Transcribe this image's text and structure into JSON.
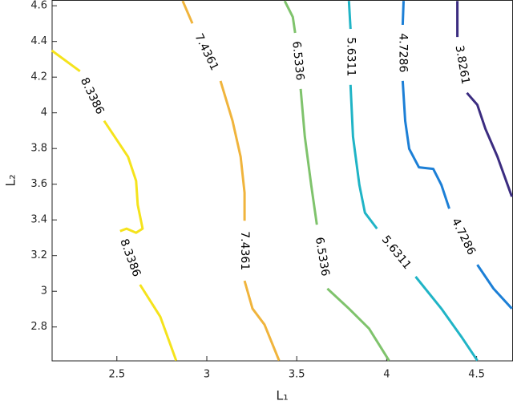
{
  "chart_data": {
    "type": "contour",
    "xlabel": "L₁",
    "ylabel": "L₂",
    "xlim": [
      2.14,
      4.7
    ],
    "ylim": [
      2.61,
      4.63
    ],
    "xticks": [
      2.5,
      3,
      3.5,
      4,
      4.5
    ],
    "yticks": [
      2.8,
      3,
      3.2,
      3.4,
      3.6,
      3.8,
      4,
      4.2,
      4.4,
      4.6
    ],
    "series": [
      {
        "level": 8.3386,
        "color": "#f5e31c",
        "x": [
          2.138,
          2.295,
          null,
          2.429,
          2.562,
          2.607,
          2.616,
          2.643,
          2.607,
          2.554,
          2.518,
          null,
          2.629,
          2.741,
          2.83
        ],
        "y": [
          4.349,
          4.233,
          null,
          3.955,
          3.754,
          3.619,
          3.485,
          3.351,
          3.328,
          3.351,
          3.337,
          null,
          3.037,
          2.858,
          2.612
        ]
      },
      {
        "level": 7.4361,
        "color": "#f0b43c",
        "x": [
          2.866,
          2.92,
          null,
          3.076,
          3.143,
          3.188,
          3.21,
          3.21,
          null,
          3.21,
          3.254,
          3.321,
          3.402
        ],
        "y": [
          4.627,
          4.501,
          null,
          4.179,
          3.955,
          3.754,
          3.552,
          3.395,
          null,
          3.059,
          2.903,
          2.813,
          2.612
        ]
      },
      {
        "level": 6.5336,
        "color": "#7fc36c",
        "x": [
          3.433,
          3.478,
          3.491,
          null,
          3.522,
          3.545,
          3.58,
          3.612,
          null,
          3.67,
          3.79,
          3.902,
          4.013
        ],
        "y": [
          4.627,
          4.537,
          4.448,
          null,
          4.134,
          3.866,
          3.597,
          3.373,
          null,
          3.015,
          2.903,
          2.791,
          2.612
        ]
      },
      {
        "level": 5.6311,
        "color": "#20b4c6",
        "x": [
          3.79,
          3.799,
          null,
          3.799,
          3.813,
          3.848,
          3.879,
          3.946,
          null,
          4.161,
          4.304,
          4.415,
          4.504
        ],
        "y": [
          4.627,
          4.47,
          null,
          4.157,
          3.866,
          3.597,
          3.44,
          3.351,
          null,
          3.082,
          2.903,
          2.746,
          2.612
        ]
      },
      {
        "level": 4.7286,
        "color": "#1c7fd6",
        "x": [
          4.094,
          4.089,
          null,
          4.089,
          4.103,
          4.125,
          4.179,
          4.259,
          4.304,
          4.348,
          null,
          4.504,
          4.594,
          4.696
        ],
        "y": [
          4.627,
          4.493,
          null,
          4.179,
          3.955,
          3.798,
          3.695,
          3.686,
          3.597,
          3.463,
          null,
          3.149,
          3.015,
          2.903
        ]
      },
      {
        "level": 3.8261,
        "color": "#3b2c80",
        "x": [
          4.393,
          4.393,
          null,
          4.446,
          4.504,
          4.549,
          4.616,
          4.696
        ],
        "y": [
          4.627,
          4.425,
          null,
          4.112,
          4.045,
          3.91,
          3.754,
          3.53
        ]
      }
    ]
  }
}
